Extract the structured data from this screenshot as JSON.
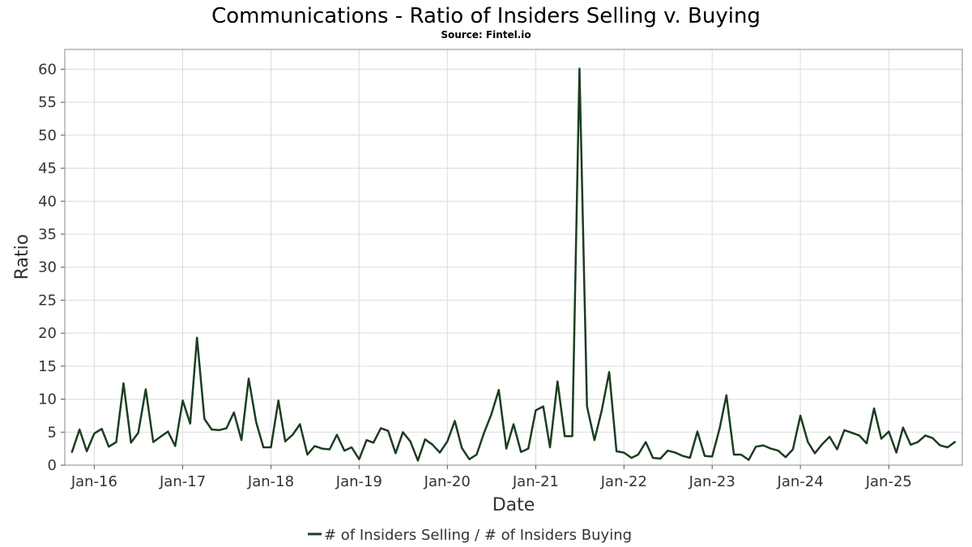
{
  "chart_data": {
    "type": "line",
    "title": "Communications - Ratio of Insiders Selling v. Buying",
    "subtitle": "Source: Fintel.io",
    "xlabel": "Date",
    "ylabel": "Ratio",
    "ylim": [
      0,
      63
    ],
    "yticks": [
      0,
      5,
      10,
      15,
      20,
      25,
      30,
      35,
      40,
      45,
      50,
      55,
      60
    ],
    "xlim": [
      "2015-09-01",
      "2025-11-01"
    ],
    "xticks": [
      {
        "label": "Jan-16",
        "date": "2016-01-01"
      },
      {
        "label": "Jan-17",
        "date": "2017-01-01"
      },
      {
        "label": "Jan-18",
        "date": "2018-01-01"
      },
      {
        "label": "Jan-19",
        "date": "2019-01-01"
      },
      {
        "label": "Jan-20",
        "date": "2020-01-01"
      },
      {
        "label": "Jan-21",
        "date": "2021-01-01"
      },
      {
        "label": "Jan-22",
        "date": "2022-01-01"
      },
      {
        "label": "Jan-23",
        "date": "2023-01-01"
      },
      {
        "label": "Jan-24",
        "date": "2024-01-01"
      },
      {
        "label": "Jan-25",
        "date": "2025-01-01"
      }
    ],
    "grid": true,
    "legend_position": "bottom-center",
    "series": [
      {
        "name": "# of Insiders Selling / # of Insiders Buying",
        "color": "#1c3d20",
        "points": [
          [
            "2015-10-01",
            2.0
          ],
          [
            "2015-11-01",
            5.4
          ],
          [
            "2015-12-01",
            2.1
          ],
          [
            "2016-01-01",
            4.8
          ],
          [
            "2016-02-01",
            5.5
          ],
          [
            "2016-03-01",
            2.8
          ],
          [
            "2016-04-01",
            3.5
          ],
          [
            "2016-05-01",
            12.4
          ],
          [
            "2016-06-01",
            3.4
          ],
          [
            "2016-07-01",
            4.9
          ],
          [
            "2016-08-01",
            11.5
          ],
          [
            "2016-09-01",
            3.5
          ],
          [
            "2016-10-01",
            4.3
          ],
          [
            "2016-11-01",
            5.1
          ],
          [
            "2016-12-01",
            2.9
          ],
          [
            "2017-01-01",
            9.8
          ],
          [
            "2017-02-01",
            6.3
          ],
          [
            "2017-03-01",
            19.3
          ],
          [
            "2017-04-01",
            7.0
          ],
          [
            "2017-05-01",
            5.4
          ],
          [
            "2017-06-01",
            5.3
          ],
          [
            "2017-07-01",
            5.6
          ],
          [
            "2017-08-01",
            8.0
          ],
          [
            "2017-09-01",
            3.8
          ],
          [
            "2017-10-01",
            13.1
          ],
          [
            "2017-11-01",
            6.5
          ],
          [
            "2017-12-01",
            2.7
          ],
          [
            "2018-01-01",
            2.7
          ],
          [
            "2018-02-01",
            9.8
          ],
          [
            "2018-03-01",
            3.6
          ],
          [
            "2018-04-01",
            4.6
          ],
          [
            "2018-05-01",
            6.2
          ],
          [
            "2018-06-01",
            1.6
          ],
          [
            "2018-07-01",
            2.9
          ],
          [
            "2018-08-01",
            2.5
          ],
          [
            "2018-09-01",
            2.4
          ],
          [
            "2018-10-01",
            4.6
          ],
          [
            "2018-11-01",
            2.2
          ],
          [
            "2018-12-01",
            2.7
          ],
          [
            "2019-01-01",
            0.9
          ],
          [
            "2019-02-01",
            3.8
          ],
          [
            "2019-03-01",
            3.4
          ],
          [
            "2019-04-01",
            5.6
          ],
          [
            "2019-05-01",
            5.2
          ],
          [
            "2019-06-01",
            1.8
          ],
          [
            "2019-07-01",
            5.0
          ],
          [
            "2019-08-01",
            3.6
          ],
          [
            "2019-09-01",
            0.7
          ],
          [
            "2019-10-01",
            3.9
          ],
          [
            "2019-11-01",
            3.1
          ],
          [
            "2019-12-01",
            1.9
          ],
          [
            "2020-01-01",
            3.6
          ],
          [
            "2020-02-01",
            6.7
          ],
          [
            "2020-03-01",
            2.6
          ],
          [
            "2020-04-01",
            0.9
          ],
          [
            "2020-05-01",
            1.6
          ],
          [
            "2020-06-01",
            4.9
          ],
          [
            "2020-07-01",
            7.7
          ],
          [
            "2020-08-01",
            11.4
          ],
          [
            "2020-09-01",
            2.5
          ],
          [
            "2020-10-01",
            6.2
          ],
          [
            "2020-11-01",
            2.0
          ],
          [
            "2020-12-01",
            2.5
          ],
          [
            "2021-01-01",
            8.3
          ],
          [
            "2021-02-01",
            8.9
          ],
          [
            "2021-03-01",
            2.7
          ],
          [
            "2021-04-01",
            12.7
          ],
          [
            "2021-05-01",
            4.4
          ],
          [
            "2021-06-01",
            4.4
          ],
          [
            "2021-07-01",
            60.1
          ],
          [
            "2021-08-01",
            8.9
          ],
          [
            "2021-09-01",
            3.8
          ],
          [
            "2021-10-01",
            8.3
          ],
          [
            "2021-11-01",
            14.1
          ],
          [
            "2021-12-01",
            2.1
          ],
          [
            "2022-01-01",
            1.9
          ],
          [
            "2022-02-01",
            1.1
          ],
          [
            "2022-03-01",
            1.6
          ],
          [
            "2022-04-01",
            3.5
          ],
          [
            "2022-05-01",
            1.1
          ],
          [
            "2022-06-01",
            1.0
          ],
          [
            "2022-07-01",
            2.2
          ],
          [
            "2022-08-01",
            1.9
          ],
          [
            "2022-09-01",
            1.4
          ],
          [
            "2022-10-01",
            1.1
          ],
          [
            "2022-11-01",
            5.1
          ],
          [
            "2022-12-01",
            1.4
          ],
          [
            "2023-01-01",
            1.3
          ],
          [
            "2023-02-01",
            5.6
          ],
          [
            "2023-03-01",
            10.6
          ],
          [
            "2023-04-01",
            1.6
          ],
          [
            "2023-05-01",
            1.6
          ],
          [
            "2023-06-01",
            0.8
          ],
          [
            "2023-07-01",
            2.8
          ],
          [
            "2023-08-01",
            3.0
          ],
          [
            "2023-09-01",
            2.5
          ],
          [
            "2023-10-01",
            2.2
          ],
          [
            "2023-11-01",
            1.2
          ],
          [
            "2023-12-01",
            2.4
          ],
          [
            "2024-01-01",
            7.5
          ],
          [
            "2024-02-01",
            3.5
          ],
          [
            "2024-03-01",
            1.8
          ],
          [
            "2024-04-01",
            3.2
          ],
          [
            "2024-05-01",
            4.3
          ],
          [
            "2024-06-01",
            2.4
          ],
          [
            "2024-07-01",
            5.3
          ],
          [
            "2024-08-01",
            4.9
          ],
          [
            "2024-09-01",
            4.5
          ],
          [
            "2024-10-01",
            3.3
          ],
          [
            "2024-11-01",
            8.6
          ],
          [
            "2024-12-01",
            4.0
          ],
          [
            "2025-01-01",
            5.1
          ],
          [
            "2025-02-01",
            1.9
          ],
          [
            "2025-03-01",
            5.7
          ],
          [
            "2025-04-01",
            3.1
          ],
          [
            "2025-05-01",
            3.5
          ],
          [
            "2025-06-01",
            4.5
          ],
          [
            "2025-07-01",
            4.1
          ],
          [
            "2025-08-01",
            3.0
          ],
          [
            "2025-09-01",
            2.7
          ],
          [
            "2025-10-01",
            3.5
          ]
        ]
      }
    ]
  }
}
